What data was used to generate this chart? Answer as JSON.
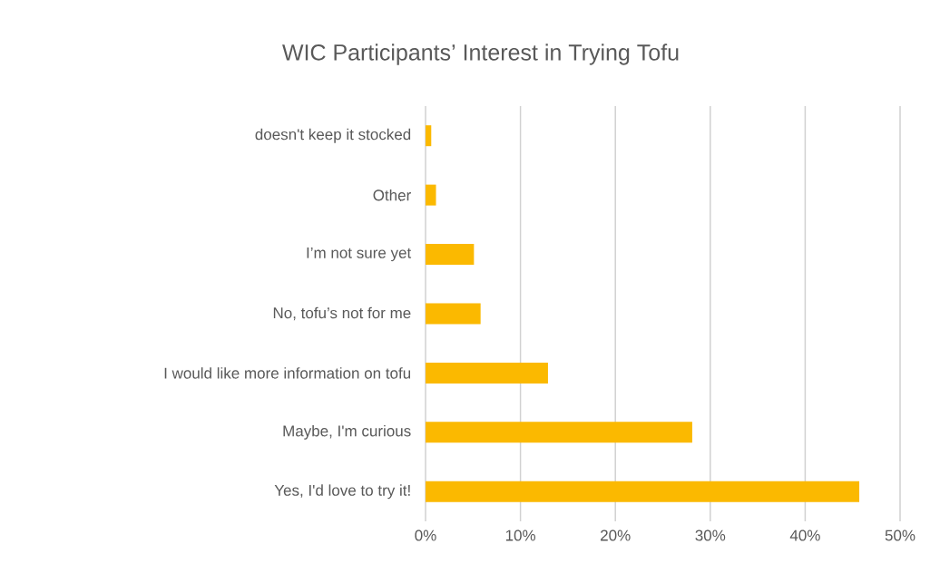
{
  "chart_data": {
    "type": "bar",
    "orientation": "horizontal",
    "title": "WIC Participants’ Interest in Trying Tofu",
    "categories": [
      "doesn't keep it stocked",
      "Other",
      "I’m not sure yet",
      "No, tofu’s not for me",
      "I would like more information on tofu",
      "Maybe, I'm curious",
      "Yes, I'd love to try it!"
    ],
    "values": [
      0.6,
      1.1,
      5.1,
      5.8,
      12.9,
      28.1,
      45.7
    ],
    "color": "#fbb900",
    "xlim": [
      0,
      50
    ],
    "xticks": [
      {
        "value": 0,
        "label": "0%"
      },
      {
        "value": 10,
        "label": "10%"
      },
      {
        "value": 20,
        "label": "20%"
      },
      {
        "value": 30,
        "label": "30%"
      },
      {
        "value": 40,
        "label": "40%"
      },
      {
        "value": 50,
        "label": "50%"
      }
    ],
    "grid": "x"
  }
}
